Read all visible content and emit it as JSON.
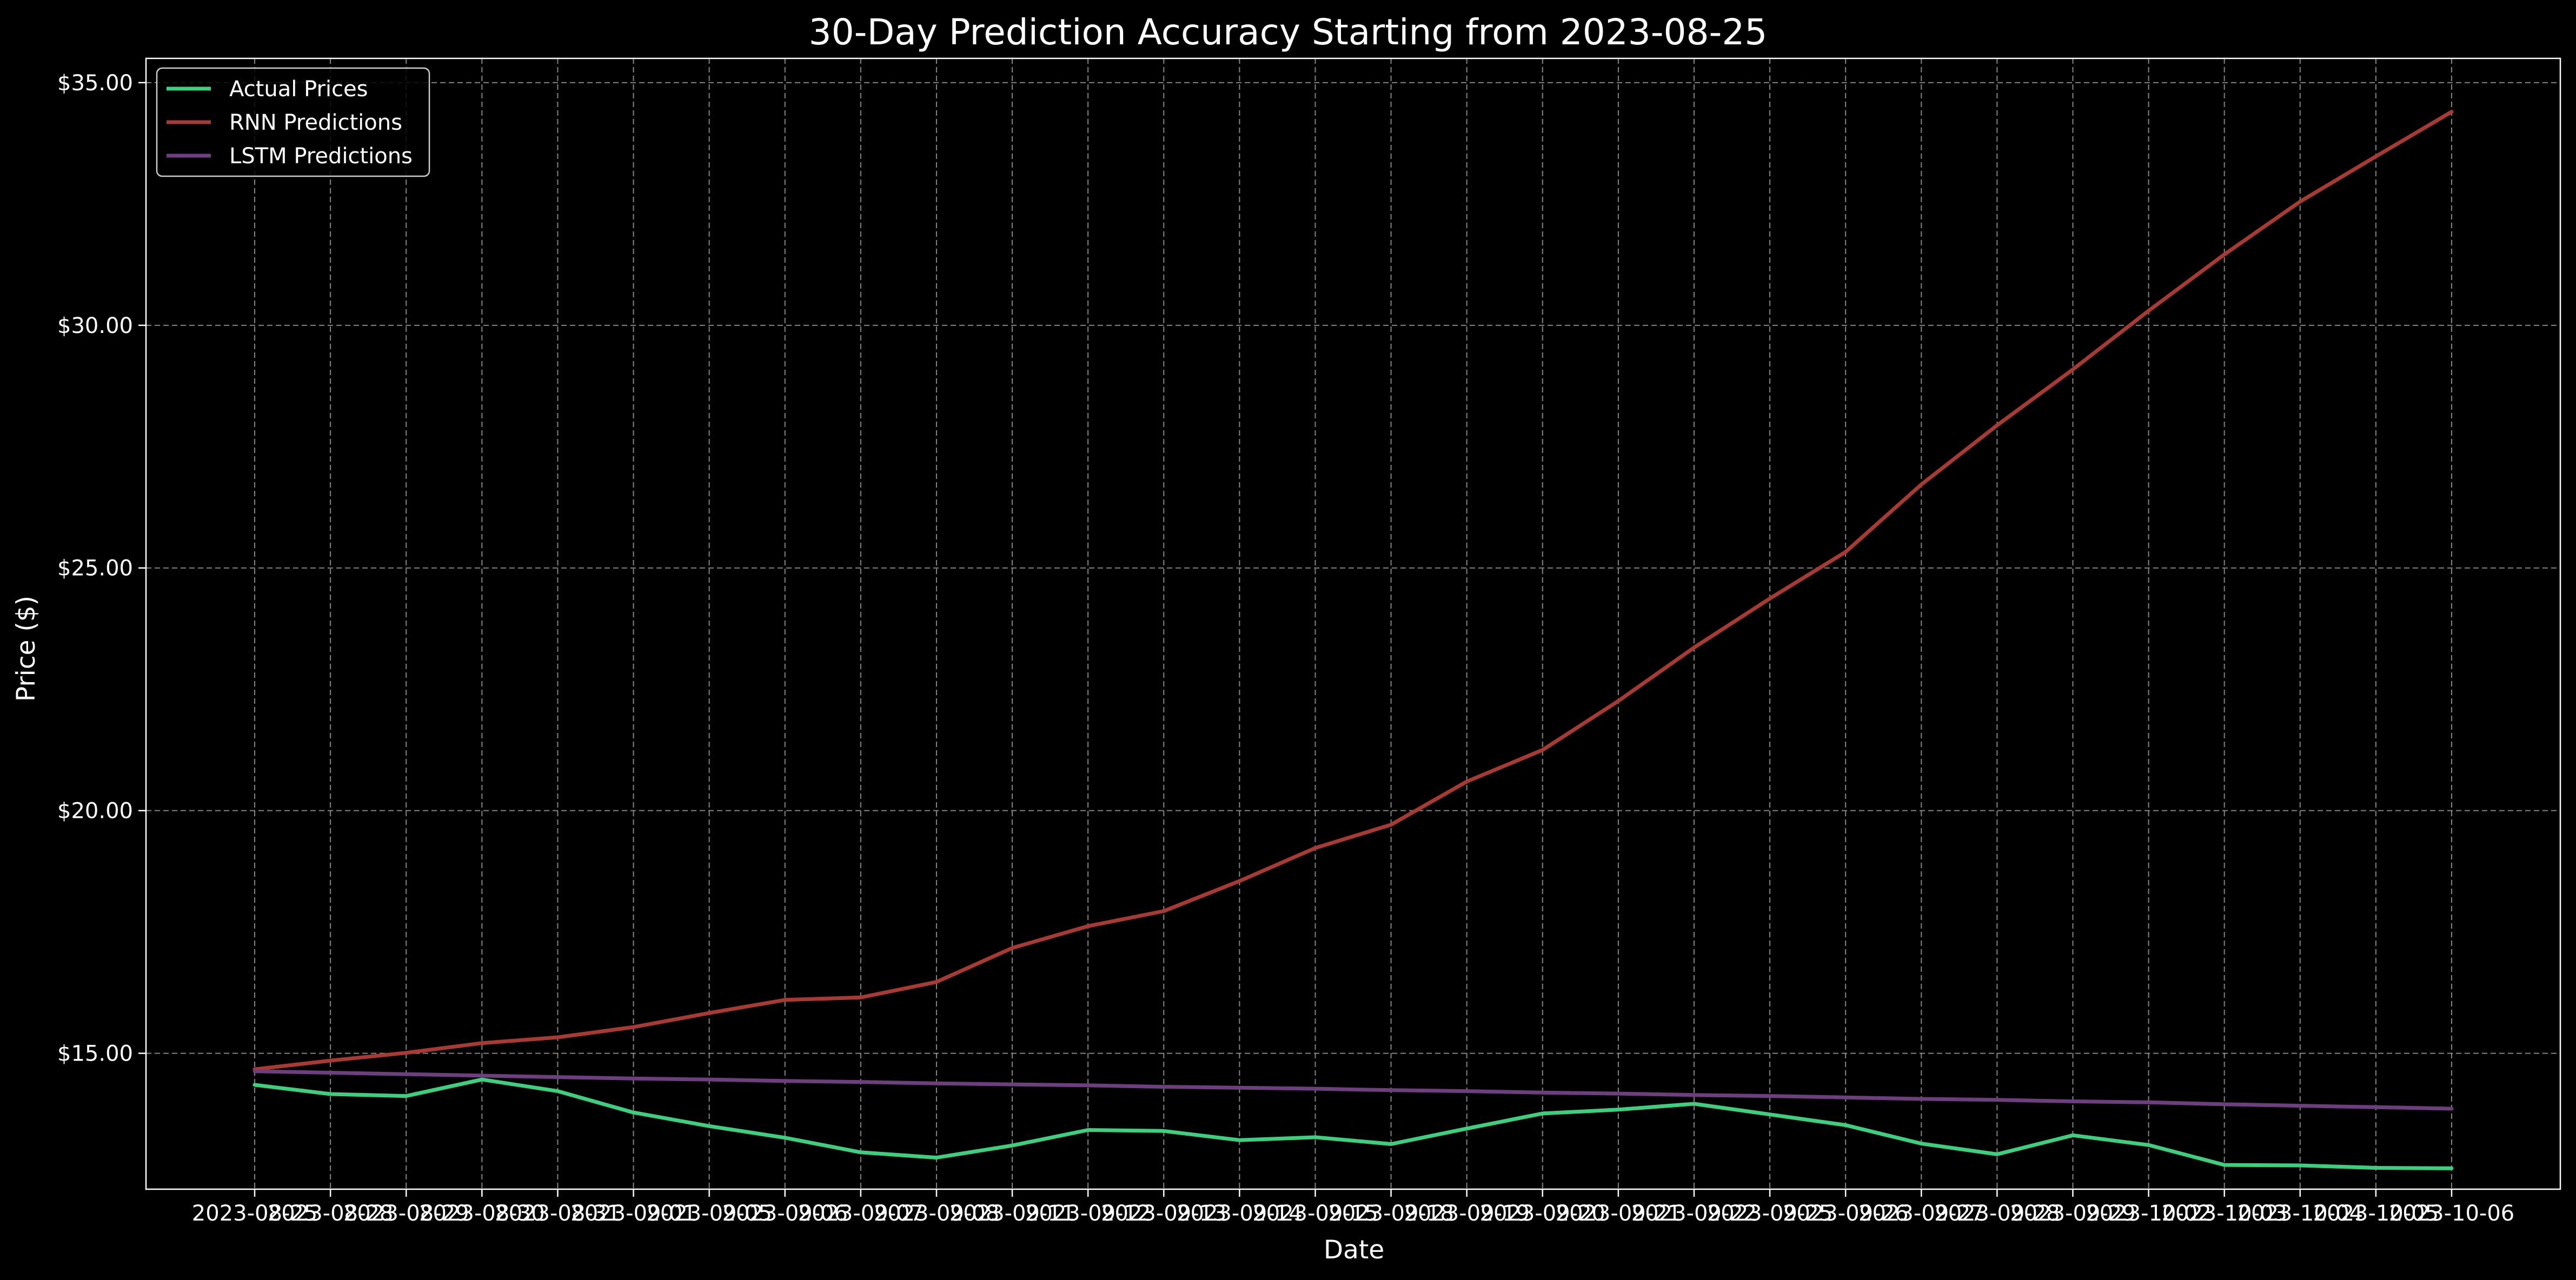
{
  "chart_data": {
    "type": "line",
    "title": "30-Day Prediction Accuracy Starting from 2023-08-25",
    "xlabel": "Date",
    "ylabel": "Price ($)",
    "categories": [
      "2023-08-25",
      "2023-08-28",
      "2023-08-29",
      "2023-08-30",
      "2023-08-31",
      "2023-09-01",
      "2023-09-05",
      "2023-09-06",
      "2023-09-07",
      "2023-09-08",
      "2023-09-11",
      "2023-09-12",
      "2023-09-13",
      "2023-09-14",
      "2023-09-15",
      "2023-09-18",
      "2023-09-19",
      "2023-09-20",
      "2023-09-21",
      "2023-09-22",
      "2023-09-25",
      "2023-09-26",
      "2023-09-27",
      "2023-09-28",
      "2023-09-29",
      "2023-10-02",
      "2023-10-03",
      "2023-10-04",
      "2023-10-05",
      "2023-10-06"
    ],
    "yticks": [
      "$15.00",
      "$20.00",
      "$25.00",
      "$30.00",
      "$35.00"
    ],
    "ytick_values": [
      15,
      20,
      25,
      30,
      35
    ],
    "ylim": [
      12.2,
      35.5
    ],
    "grid": true,
    "legend_position": "top-left",
    "series": [
      {
        "name": "Actual Prices",
        "color": "#3ecf7e",
        "values": [
          14.35,
          14.16,
          14.12,
          14.46,
          14.22,
          13.78,
          13.5,
          13.26,
          12.96,
          12.85,
          13.1,
          13.42,
          13.4,
          13.21,
          13.27,
          13.13,
          13.45,
          13.76,
          13.84,
          13.96,
          13.74,
          13.52,
          13.14,
          12.92,
          13.31,
          13.11,
          12.7,
          12.69,
          12.64,
          12.63
        ]
      },
      {
        "name": "RNN Predictions",
        "color": "#a83a34",
        "values": [
          14.67,
          14.85,
          15.01,
          15.21,
          15.33,
          15.54,
          15.83,
          16.1,
          16.15,
          16.47,
          17.17,
          17.62,
          17.93,
          18.55,
          19.23,
          19.71,
          20.6,
          21.25,
          22.26,
          23.36,
          24.37,
          25.33,
          26.72,
          27.94,
          29.09,
          30.3,
          31.46,
          32.55,
          33.48,
          34.4
        ]
      },
      {
        "name": "LSTM Predictions",
        "color": "#6d3f7e",
        "values": [
          14.63,
          14.6,
          14.57,
          14.54,
          14.51,
          14.48,
          14.46,
          14.43,
          14.41,
          14.38,
          14.36,
          14.34,
          14.31,
          14.29,
          14.27,
          14.24,
          14.22,
          14.19,
          14.17,
          14.14,
          14.12,
          14.09,
          14.06,
          14.04,
          14.01,
          13.99,
          13.95,
          13.92,
          13.89,
          13.86
        ]
      }
    ]
  }
}
